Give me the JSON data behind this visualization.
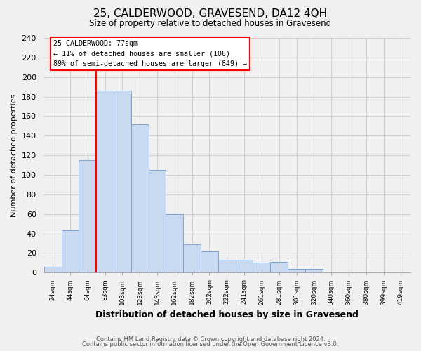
{
  "title": "25, CALDERWOOD, GRAVESEND, DA12 4QH",
  "subtitle": "Size of property relative to detached houses in Gravesend",
  "xlabel": "Distribution of detached houses by size in Gravesend",
  "ylabel": "Number of detached properties",
  "footer_line1": "Contains HM Land Registry data © Crown copyright and database right 2024.",
  "footer_line2": "Contains public sector information licensed under the Open Government Licence v3.0.",
  "bin_labels": [
    "24sqm",
    "44sqm",
    "64sqm",
    "83sqm",
    "103sqm",
    "123sqm",
    "143sqm",
    "162sqm",
    "182sqm",
    "202sqm",
    "222sqm",
    "241sqm",
    "261sqm",
    "281sqm",
    "301sqm",
    "320sqm",
    "340sqm",
    "360sqm",
    "380sqm",
    "399sqm",
    "419sqm"
  ],
  "bin_values": [
    6,
    43,
    115,
    186,
    186,
    152,
    105,
    60,
    29,
    22,
    13,
    13,
    10,
    11,
    4,
    4,
    0,
    0,
    0,
    0,
    0
  ],
  "bar_color": "#c9d9f0",
  "bar_edge_color": "#7ba3d4",
  "vline_x_index": 3,
  "vline_color": "red",
  "annotation_text": "25 CALDERWOOD: 77sqm\n← 11% of detached houses are smaller (106)\n89% of semi-detached houses are larger (849) →",
  "annotation_box_color": "white",
  "annotation_box_edge_color": "red",
  "ylim": [
    0,
    240
  ],
  "yticks": [
    0,
    20,
    40,
    60,
    80,
    100,
    120,
    140,
    160,
    180,
    200,
    220,
    240
  ],
  "grid_color": "#d0d0d0",
  "background_color": "#f0f0f0"
}
